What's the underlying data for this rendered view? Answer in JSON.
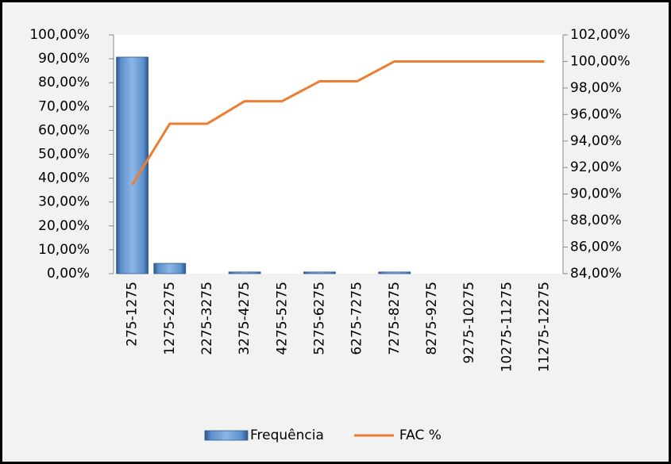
{
  "chart_data": {
    "type": "bar-line",
    "categories": [
      "275-1275",
      "1275-2275",
      "2275-3275",
      "3275-4275",
      "4275-5275",
      "5275-6275",
      "6275-7275",
      "7275-8275",
      "8275-9275",
      "9275-10275",
      "10275-11275",
      "11275-12275"
    ],
    "series": [
      {
        "name": "Frequência",
        "type": "bar",
        "color": "#4f81bd",
        "values": [
          90.7,
          4.3,
          0,
          0.7,
          0,
          0.7,
          0,
          0.7,
          0,
          0,
          0,
          0
        ]
      },
      {
        "name": "FAC %",
        "type": "line",
        "axis": "y2",
        "color": "#ed7d31",
        "values": [
          90.7,
          95.3,
          95.3,
          97.0,
          97.0,
          98.5,
          98.5,
          100,
          100,
          100,
          100,
          100
        ]
      }
    ],
    "ylim": [
      0,
      100
    ],
    "yticks": [
      {
        "value": 0,
        "label": "0,00%"
      },
      {
        "value": 10,
        "label": "10,00%"
      },
      {
        "value": 20,
        "label": "20,00%"
      },
      {
        "value": 30,
        "label": "30,00%"
      },
      {
        "value": 40,
        "label": "40,00%"
      },
      {
        "value": 50,
        "label": "50,00%"
      },
      {
        "value": 60,
        "label": "60,00%"
      },
      {
        "value": 70,
        "label": "70,00%"
      },
      {
        "value": 80,
        "label": "80,00%"
      },
      {
        "value": 90,
        "label": "90,00%"
      },
      {
        "value": 100,
        "label": "100,00%"
      }
    ],
    "y2lim": [
      84,
      102
    ],
    "y2ticks": [
      {
        "value": 84,
        "label": "84,00%"
      },
      {
        "value": 86,
        "label": "86,00%"
      },
      {
        "value": 88,
        "label": "88,00%"
      },
      {
        "value": 90,
        "label": "90,00%"
      },
      {
        "value": 92,
        "label": "92,00%"
      },
      {
        "value": 94,
        "label": "94,00%"
      },
      {
        "value": 96,
        "label": "96,00%"
      },
      {
        "value": 98,
        "label": "98,00%"
      },
      {
        "value": 100,
        "label": "100,00%"
      },
      {
        "value": 102,
        "label": "102,00%"
      }
    ],
    "legend": "bottom"
  }
}
